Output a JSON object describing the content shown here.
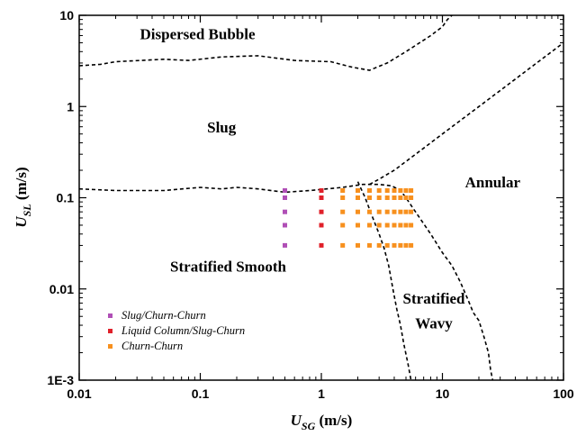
{
  "chart_data": {
    "type": "scatter",
    "xscale": "log",
    "yscale": "log",
    "xlim": [
      0.01,
      100
    ],
    "ylim": [
      0.001,
      10
    ],
    "xticks": [
      "0.01",
      "0.1",
      "1",
      "10",
      "100"
    ],
    "yticks": [
      "1E-3",
      "0.01",
      "0.1",
      "1",
      "10"
    ],
    "xlabel": {
      "main": "U",
      "sub": "SG",
      "unit": " (m/s)"
    },
    "ylabel": {
      "main": "U",
      "sub": "SL",
      "unit": " (m/s)"
    },
    "regions": [
      {
        "name": "Dispersed Bubble",
        "x": 0.095,
        "y": 5.5
      },
      {
        "name": "Slug",
        "x": 0.15,
        "y": 0.52
      },
      {
        "name": "Annular",
        "x": 26,
        "y": 0.13
      },
      {
        "name": "Stratified Smooth",
        "x": 0.17,
        "y": 0.0155
      },
      {
        "name": "Stratified",
        "x": 8.5,
        "y": 0.0069
      },
      {
        "name": "Wavy",
        "x": 8.5,
        "y": 0.0037
      }
    ],
    "boundaries": [
      {
        "name": "dispersed-bubble-boundary",
        "points": [
          [
            0.01,
            2.8
          ],
          [
            0.015,
            2.9
          ],
          [
            0.02,
            3.1
          ],
          [
            0.05,
            3.3
          ],
          [
            0.08,
            3.2
          ],
          [
            0.15,
            3.5
          ],
          [
            0.3,
            3.6
          ],
          [
            0.6,
            3.2
          ],
          [
            1.2,
            3.1
          ],
          [
            1.8,
            2.7
          ],
          [
            2.5,
            2.5
          ],
          [
            3.5,
            3.0
          ],
          [
            5,
            4.0
          ],
          [
            8,
            6.0
          ],
          [
            10,
            7.5
          ],
          [
            11,
            9.0
          ],
          [
            12,
            10
          ]
        ]
      },
      {
        "name": "slug-boundary",
        "points": [
          [
            0.01,
            0.125
          ],
          [
            0.02,
            0.12
          ],
          [
            0.05,
            0.12
          ],
          [
            0.1,
            0.13
          ],
          [
            0.15,
            0.125
          ],
          [
            0.2,
            0.13
          ],
          [
            0.3,
            0.125
          ],
          [
            0.5,
            0.115
          ],
          [
            0.8,
            0.12
          ],
          [
            1.5,
            0.13
          ],
          [
            2.2,
            0.14
          ],
          [
            3.0,
            0.14
          ],
          [
            3.8,
            0.135
          ],
          [
            4.5,
            0.12
          ],
          [
            5,
            0.1
          ],
          [
            5.6,
            0.08
          ],
          [
            6.5,
            0.06
          ],
          [
            8,
            0.04
          ],
          [
            10,
            0.025
          ],
          [
            12,
            0.018
          ],
          [
            14,
            0.012
          ],
          [
            16,
            0.008
          ],
          [
            18,
            0.0055
          ],
          [
            20,
            0.0045
          ],
          [
            22,
            0.003
          ],
          [
            24,
            0.002
          ],
          [
            25,
            0.0013
          ],
          [
            26,
            0.001
          ]
        ]
      },
      {
        "name": "annular-boundary",
        "points": [
          [
            2.5,
            0.14
          ],
          [
            3.0,
            0.16
          ],
          [
            4.0,
            0.2
          ],
          [
            6,
            0.3
          ],
          [
            10,
            0.5
          ],
          [
            20,
            1.0
          ],
          [
            40,
            2.0
          ],
          [
            60,
            3.0
          ],
          [
            80,
            4.0
          ],
          [
            100,
            5.0
          ]
        ]
      },
      {
        "name": "stratified-wavy-boundary",
        "points": [
          [
            2.0,
            0.15
          ],
          [
            2.3,
            0.1
          ],
          [
            2.6,
            0.065
          ],
          [
            3.0,
            0.04
          ],
          [
            3.3,
            0.028
          ],
          [
            3.6,
            0.018
          ],
          [
            3.9,
            0.01
          ],
          [
            4.2,
            0.006
          ],
          [
            4.5,
            0.004
          ],
          [
            4.8,
            0.0025
          ],
          [
            5.2,
            0.0015
          ],
          [
            5.5,
            0.001
          ]
        ]
      }
    ],
    "series": [
      {
        "name": "Slug/Churn-Churn",
        "color": "#b04fb6",
        "points": [
          [
            0.5,
            0.12
          ],
          [
            0.5,
            0.1
          ],
          [
            0.5,
            0.07
          ],
          [
            0.5,
            0.05
          ],
          [
            0.5,
            0.03
          ]
        ]
      },
      {
        "name": "Liquid Column/Slug-Churn",
        "color": "#e0202a",
        "points": [
          [
            1.0,
            0.12
          ],
          [
            1.0,
            0.1
          ],
          [
            1.0,
            0.07
          ],
          [
            1.0,
            0.05
          ],
          [
            1.0,
            0.03
          ]
        ]
      },
      {
        "name": "Churn-Churn",
        "color": "#f7901e",
        "points": [
          [
            1.5,
            0.12
          ],
          [
            1.5,
            0.1
          ],
          [
            1.5,
            0.07
          ],
          [
            1.5,
            0.05
          ],
          [
            1.5,
            0.03
          ],
          [
            2.0,
            0.12
          ],
          [
            2.0,
            0.1
          ],
          [
            2.0,
            0.07
          ],
          [
            2.0,
            0.05
          ],
          [
            2.0,
            0.03
          ],
          [
            2.5,
            0.12
          ],
          [
            2.5,
            0.1
          ],
          [
            2.5,
            0.07
          ],
          [
            2.5,
            0.05
          ],
          [
            2.5,
            0.03
          ],
          [
            3.0,
            0.12
          ],
          [
            3.0,
            0.1
          ],
          [
            3.0,
            0.07
          ],
          [
            3.0,
            0.05
          ],
          [
            3.0,
            0.03
          ],
          [
            3.5,
            0.12
          ],
          [
            3.5,
            0.1
          ],
          [
            3.5,
            0.07
          ],
          [
            3.5,
            0.05
          ],
          [
            3.5,
            0.03
          ],
          [
            4.0,
            0.12
          ],
          [
            4.0,
            0.1
          ],
          [
            4.0,
            0.07
          ],
          [
            4.0,
            0.05
          ],
          [
            4.0,
            0.03
          ],
          [
            4.5,
            0.12
          ],
          [
            4.5,
            0.1
          ],
          [
            4.5,
            0.07
          ],
          [
            4.5,
            0.05
          ],
          [
            4.5,
            0.03
          ],
          [
            5.0,
            0.12
          ],
          [
            5.0,
            0.1
          ],
          [
            5.0,
            0.07
          ],
          [
            5.0,
            0.05
          ],
          [
            5.0,
            0.03
          ],
          [
            5.5,
            0.12
          ],
          [
            5.5,
            0.1
          ],
          [
            5.5,
            0.07
          ],
          [
            5.5,
            0.05
          ],
          [
            5.5,
            0.03
          ]
        ]
      }
    ],
    "legend": {
      "placement": "bottom-left"
    },
    "grid": false
  }
}
